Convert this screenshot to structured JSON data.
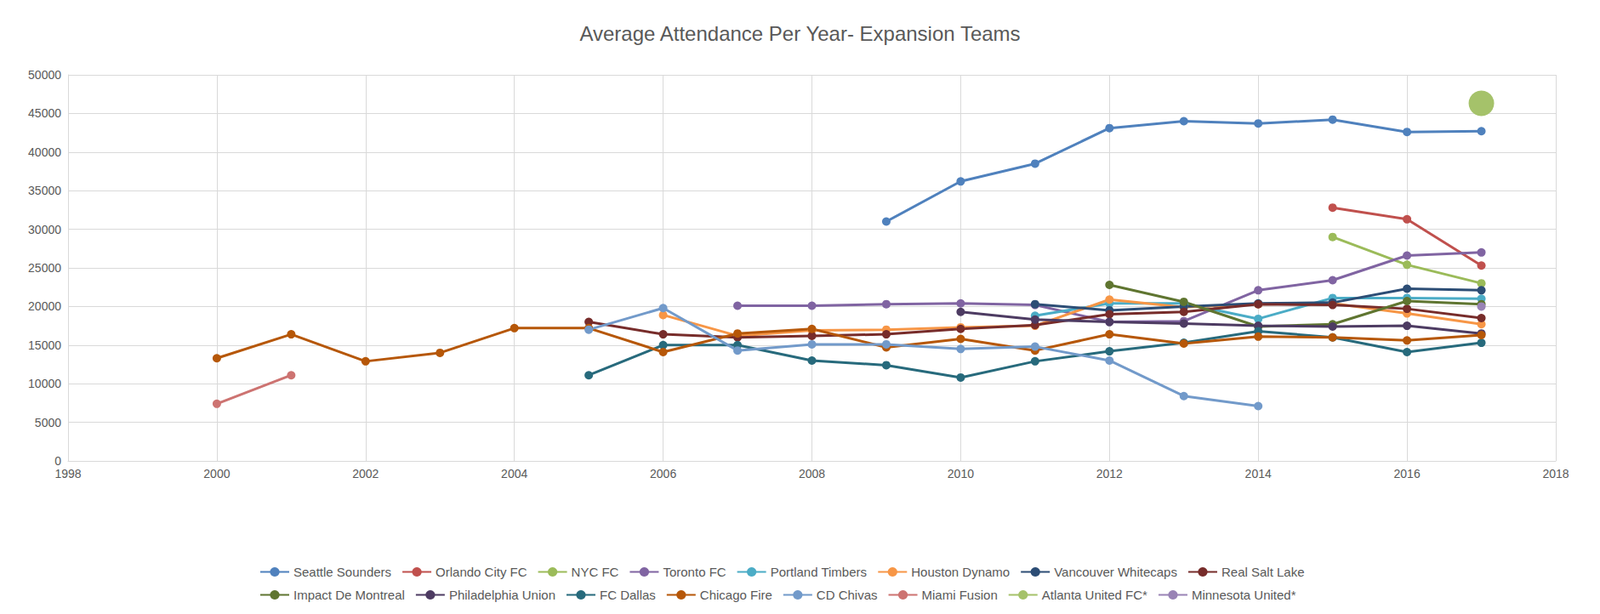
{
  "chart_data": {
    "type": "line",
    "title": "Average Attendance Per Year- Expansion Teams",
    "x": [
      2000,
      2001,
      2002,
      2003,
      2004,
      2005,
      2006,
      2007,
      2008,
      2009,
      2010,
      2011,
      2012,
      2013,
      2014,
      2015,
      2016,
      2017
    ],
    "xlim": [
      1998,
      2018
    ],
    "xticks": [
      1998,
      2000,
      2002,
      2004,
      2006,
      2008,
      2010,
      2012,
      2014,
      2016,
      2018
    ],
    "ylim": [
      0,
      50000
    ],
    "yticks": [
      0,
      5000,
      10000,
      15000,
      20000,
      25000,
      30000,
      35000,
      40000,
      45000,
      50000
    ],
    "grid": true,
    "legend": "bottom",
    "marker": "circle",
    "series": [
      {
        "name": "Seattle Sounders",
        "color": "#4f81bd",
        "values": [
          null,
          null,
          null,
          null,
          null,
          null,
          null,
          null,
          null,
          31000,
          36200,
          38500,
          43100,
          44000,
          43700,
          44200,
          42600,
          42700
        ]
      },
      {
        "name": "Orlando City FC",
        "color": "#c0504d",
        "values": [
          null,
          null,
          null,
          null,
          null,
          null,
          null,
          null,
          null,
          null,
          null,
          null,
          null,
          null,
          null,
          32800,
          31300,
          25300
        ]
      },
      {
        "name": "NYC FC",
        "color": "#9bbb59",
        "values": [
          null,
          null,
          null,
          null,
          null,
          null,
          null,
          null,
          null,
          null,
          null,
          null,
          null,
          null,
          null,
          29000,
          25400,
          23000
        ]
      },
      {
        "name": "Toronto FC",
        "color": "#8064a2",
        "values": [
          null,
          null,
          null,
          null,
          null,
          null,
          null,
          20100,
          20100,
          20300,
          20400,
          20200,
          18000,
          18100,
          22100,
          23400,
          26600,
          27000
        ]
      },
      {
        "name": "Portland Timbers",
        "color": "#4bacc6",
        "values": [
          null,
          null,
          null,
          null,
          null,
          null,
          null,
          null,
          null,
          null,
          null,
          18800,
          20400,
          20400,
          18400,
          21100,
          21100,
          21000
        ]
      },
      {
        "name": "Houston Dynamo",
        "color": "#f79646",
        "values": [
          null,
          null,
          null,
          null,
          null,
          null,
          18900,
          16200,
          16900,
          17000,
          17300,
          17500,
          20900,
          19900,
          20300,
          20400,
          19100,
          17700
        ]
      },
      {
        "name": "Vancouver Whitecaps",
        "color": "#2c4d75",
        "values": [
          null,
          null,
          null,
          null,
          null,
          null,
          null,
          null,
          null,
          null,
          null,
          20300,
          19500,
          20000,
          20400,
          20500,
          22300,
          22100
        ]
      },
      {
        "name": "Real Salt Lake",
        "color": "#772c2a",
        "values": [
          null,
          null,
          null,
          null,
          null,
          18000,
          16400,
          16000,
          16200,
          16400,
          17100,
          17600,
          19000,
          19300,
          20300,
          20200,
          19700,
          18500
        ]
      },
      {
        "name": "Impact De Montreal",
        "color": "#5f7530",
        "values": [
          null,
          null,
          null,
          null,
          null,
          null,
          null,
          null,
          null,
          null,
          null,
          null,
          22800,
          20600,
          17400,
          17700,
          20700,
          20300
        ]
      },
      {
        "name": "Philadelphia Union",
        "color": "#4d3b62",
        "values": [
          null,
          null,
          null,
          null,
          null,
          null,
          null,
          null,
          null,
          null,
          19300,
          18300,
          18000,
          17800,
          17500,
          17400,
          17500,
          16500
        ]
      },
      {
        "name": "FC Dallas",
        "color": "#276a7c",
        "values": [
          null,
          null,
          null,
          null,
          null,
          11100,
          15000,
          15000,
          13000,
          12400,
          10800,
          12900,
          14200,
          15300,
          16800,
          16000,
          14100,
          15300
        ]
      },
      {
        "name": "Chicago Fire",
        "color": "#b65708",
        "values": [
          13300,
          16400,
          12900,
          14000,
          17200,
          17200,
          14100,
          16500,
          17100,
          14700,
          15800,
          14300,
          16400,
          15200,
          16100,
          16000,
          15600,
          16300
        ]
      },
      {
        "name": "CD Chivas",
        "color": "#729aca",
        "values": [
          null,
          null,
          null,
          null,
          null,
          17000,
          19800,
          14300,
          15100,
          15100,
          14500,
          14800,
          13000,
          8400,
          7100,
          null,
          null,
          null
        ]
      },
      {
        "name": "Miami Fusion",
        "color": "#cd7371",
        "values": [
          7400,
          11100,
          null,
          null,
          null,
          null,
          null,
          null,
          null,
          null,
          null,
          null,
          null,
          null,
          null,
          null,
          null,
          null
        ]
      },
      {
        "name": "Atlanta United FC*",
        "color": "#a5c26a",
        "marker": "large_circle",
        "values": [
          null,
          null,
          null,
          null,
          null,
          null,
          null,
          null,
          null,
          null,
          null,
          null,
          null,
          null,
          null,
          null,
          null,
          46300
        ]
      },
      {
        "name": "Minnesota United*",
        "color": "#9983b5",
        "values": [
          null,
          null,
          null,
          null,
          null,
          null,
          null,
          null,
          null,
          null,
          null,
          null,
          null,
          null,
          null,
          null,
          null,
          20000
        ]
      }
    ]
  }
}
